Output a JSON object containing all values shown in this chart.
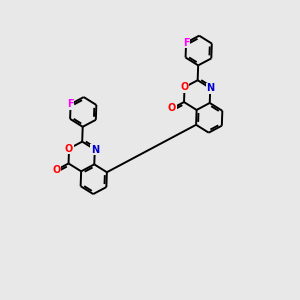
{
  "bg_color": "#e8e8e8",
  "bond_color": "#000000",
  "O_color": "#ff0000",
  "N_color": "#0000cc",
  "F_color": "#ff00ff",
  "line_width": 1.4,
  "font_size": 7.0,
  "figsize": [
    3.0,
    3.0
  ],
  "dpi": 100,
  "xlim": [
    0,
    10
  ],
  "ylim": [
    0,
    10
  ]
}
